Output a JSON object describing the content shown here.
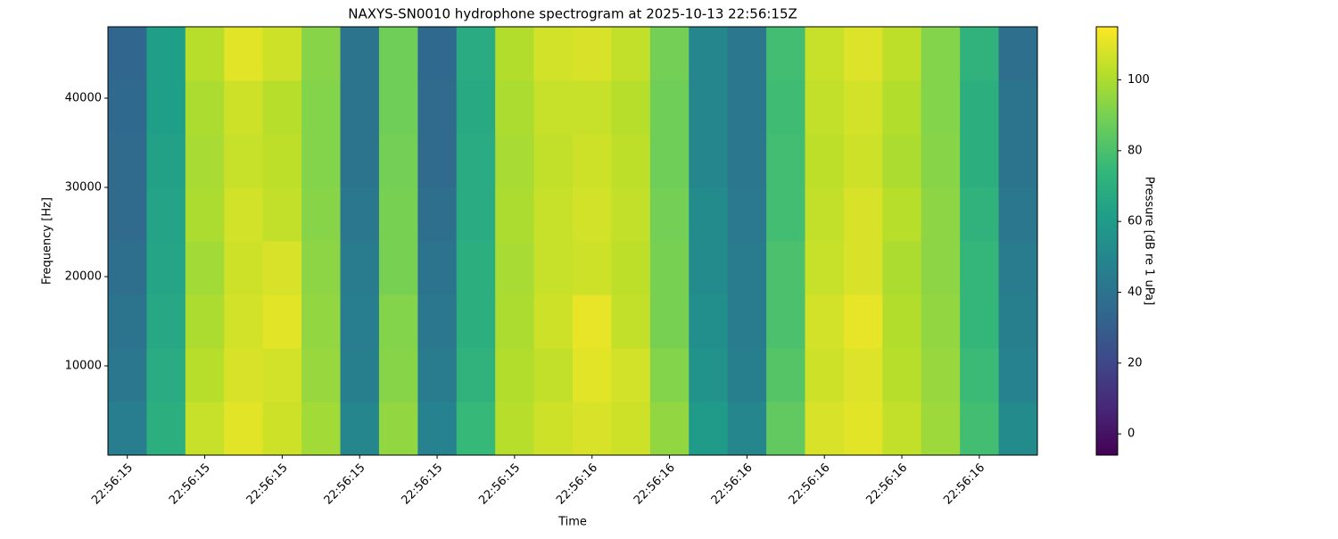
{
  "chart_data": {
    "type": "heatmap",
    "title": "NAXYS-SN0010 hydrophone spectrogram at 2025-10-13 22:56:15Z",
    "xlabel": "Time",
    "ylabel": "Frequency [Hz]",
    "colorbar_label": "Pressure [dB re 1 uPa]",
    "colormap": "viridis",
    "xlim": [
      15.375,
      16.575
    ],
    "xticks": [
      {
        "value": 15.4,
        "label": "22:56:15"
      },
      {
        "value": 15.5,
        "label": "22:56:15"
      },
      {
        "value": 15.6,
        "label": "22:56:15"
      },
      {
        "value": 15.7,
        "label": "22:56:15"
      },
      {
        "value": 15.8,
        "label": "22:56:15"
      },
      {
        "value": 15.9,
        "label": "22:56:15"
      },
      {
        "value": 16.0,
        "label": "22:56:16"
      },
      {
        "value": 16.1,
        "label": "22:56:16"
      },
      {
        "value": 16.2,
        "label": "22:56:16"
      },
      {
        "value": 16.3,
        "label": "22:56:16"
      },
      {
        "value": 16.4,
        "label": "22:56:16"
      },
      {
        "value": 16.5,
        "label": "22:56:16"
      }
    ],
    "ylim": [
      0,
      48000
    ],
    "yticks": [
      10000,
      20000,
      30000,
      40000
    ],
    "clim": [
      -6,
      115
    ],
    "cticks": [
      0,
      20,
      40,
      60,
      80,
      100
    ],
    "xbins": [
      15.375,
      15.425,
      15.475,
      15.525,
      15.575,
      15.625,
      15.675,
      15.725,
      15.775,
      15.825,
      15.875,
      15.925,
      15.975,
      16.025,
      16.075,
      16.125,
      16.175,
      16.225,
      16.275,
      16.325,
      16.375,
      16.425,
      16.475,
      16.525,
      16.575
    ],
    "ybins": [
      0,
      6000,
      12000,
      18000,
      24000,
      30000,
      36000,
      42000,
      48000
    ],
    "z": [
      [
        45,
        70,
        105,
        110,
        106,
        98,
        50,
        95,
        48,
        75,
        102,
        106,
        108,
        106,
        95,
        60,
        50,
        85,
        108,
        110,
        104,
        97,
        78,
        52
      ],
      [
        42,
        68,
        102,
        108,
        107,
        96,
        46,
        93,
        44,
        72,
        101,
        104,
        110,
        107,
        92,
        56,
        46,
        82,
        106,
        109,
        102,
        96,
        76,
        48
      ],
      [
        40,
        66,
        100,
        107,
        110,
        95,
        45,
        92,
        42,
        70,
        100,
        106,
        111,
        104,
        90,
        54,
        44,
        80,
        107,
        111,
        101,
        95,
        74,
        46
      ],
      [
        38,
        65,
        98,
        106,
        108,
        94,
        44,
        90,
        40,
        70,
        99,
        105,
        106,
        103,
        90,
        52,
        44,
        80,
        105,
        108,
        100,
        94,
        74,
        44
      ],
      [
        36,
        64,
        100,
        107,
        104,
        93,
        42,
        90,
        38,
        68,
        100,
        105,
        107,
        104,
        89,
        52,
        43,
        78,
        104,
        108,
        102,
        94,
        72,
        42
      ],
      [
        36,
        63,
        99,
        105,
        103,
        92,
        40,
        89,
        36,
        68,
        99,
        104,
        106,
        103,
        88,
        50,
        42,
        78,
        103,
        106,
        100,
        93,
        70,
        40
      ],
      [
        35,
        62,
        100,
        106,
        102,
        92,
        40,
        88,
        36,
        67,
        100,
        105,
        105,
        102,
        88,
        50,
        42,
        77,
        104,
        107,
        101,
        92,
        70,
        40
      ],
      [
        34,
        62,
        102,
        110,
        106,
        93,
        40,
        88,
        35,
        68,
        101,
        107,
        108,
        104,
        89,
        50,
        42,
        78,
        105,
        109,
        103,
        92,
        72,
        38
      ]
    ]
  }
}
